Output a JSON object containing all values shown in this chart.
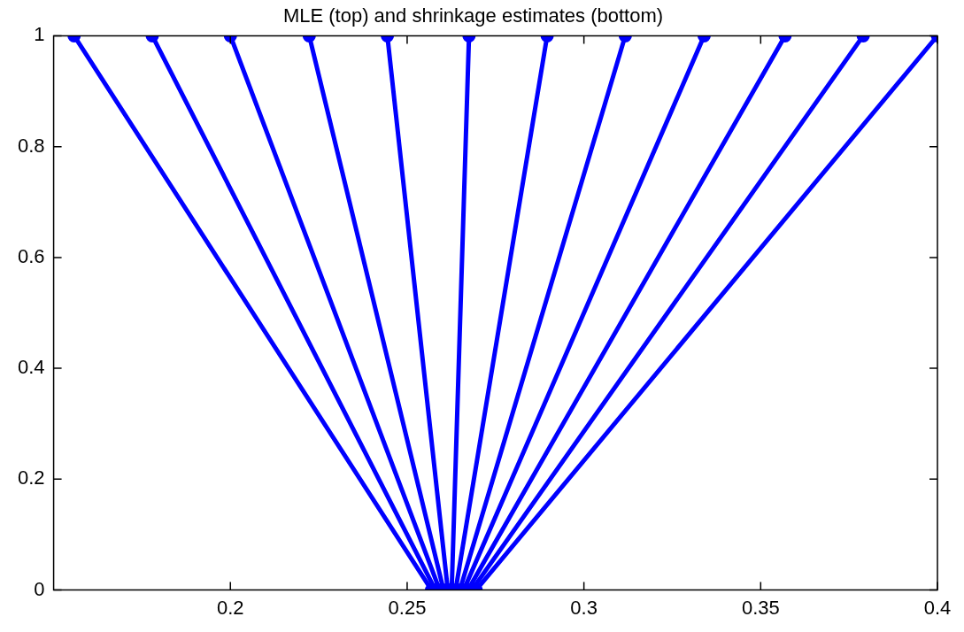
{
  "chart_data": {
    "type": "line",
    "title": "MLE (top) and shrinkage estimates (bottom)",
    "series": [
      {
        "color": "#0000ff",
        "x": [
          0.1558,
          0.2569
        ],
        "values": [
          1,
          0
        ]
      },
      {
        "color": "#0000ff",
        "x": [
          0.1779,
          0.258
        ],
        "values": [
          1,
          0
        ]
      },
      {
        "color": "#0000ff",
        "x": [
          0.2,
          0.2592
        ],
        "values": [
          1,
          0
        ]
      },
      {
        "color": "#0000ff",
        "x": [
          0.2223,
          0.2603
        ],
        "values": [
          1,
          0
        ]
      },
      {
        "color": "#0000ff",
        "x": [
          0.2444,
          0.2615
        ],
        "values": [
          1,
          0
        ]
      },
      {
        "color": "#0000ff",
        "x": [
          0.2675,
          0.2626
        ],
        "values": [
          1,
          0
        ]
      },
      {
        "color": "#0000ff",
        "x": [
          0.2896,
          0.2637
        ],
        "values": [
          1,
          0
        ]
      },
      {
        "color": "#0000ff",
        "x": [
          0.3117,
          0.2649
        ],
        "values": [
          1,
          0
        ]
      },
      {
        "color": "#0000ff",
        "x": [
          0.334,
          0.266
        ],
        "values": [
          1,
          0
        ]
      },
      {
        "color": "#0000ff",
        "x": [
          0.3569,
          0.2672
        ],
        "values": [
          1,
          0
        ]
      },
      {
        "color": "#0000ff",
        "x": [
          0.379,
          0.2683
        ],
        "values": [
          1,
          0
        ]
      },
      {
        "color": "#0000ff",
        "x": [
          0.4,
          0.2695
        ],
        "values": [
          1,
          0
        ]
      }
    ],
    "xlim": [
      0.15,
      0.4
    ],
    "xticks": [
      0.2,
      0.25,
      0.3,
      0.35,
      0.4
    ],
    "ylim": [
      0,
      1
    ],
    "yticks": [
      0,
      0.2,
      0.4,
      0.6,
      0.8,
      1
    ],
    "grid": false,
    "legend": false,
    "marker": "circle",
    "line_style": "solid"
  }
}
